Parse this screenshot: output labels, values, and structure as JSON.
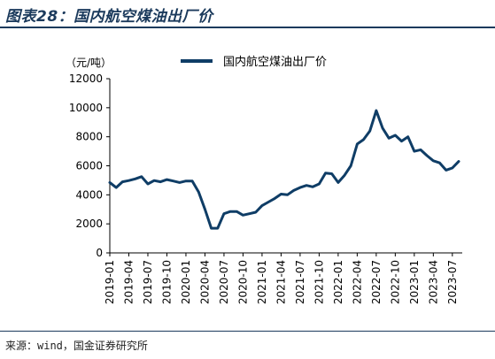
{
  "figure": {
    "title": "图表28：国内航空煤油出厂价",
    "unit": "（元/吨）",
    "source": "来源：wind，国金证券研究所"
  },
  "chart_data": {
    "type": "line",
    "title": "",
    "ylabel": "（元/吨）",
    "ylim": [
      0,
      12000
    ],
    "yticks": [
      0,
      2000,
      4000,
      6000,
      8000,
      10000,
      12000
    ],
    "xticks": [
      "2019-01",
      "2019-04",
      "2019-07",
      "2019-10",
      "2020-01",
      "2020-04",
      "2020-07",
      "2020-10",
      "2021-01",
      "2021-04",
      "2021-07",
      "2021-10",
      "2022-01",
      "2022-04",
      "2022-07",
      "2022-10",
      "2023-01",
      "2023-04",
      "2023-07"
    ],
    "legend": "top-center",
    "grid": false,
    "x": [
      "2019-01",
      "2019-02",
      "2019-03",
      "2019-04",
      "2019-05",
      "2019-06",
      "2019-07",
      "2019-08",
      "2019-09",
      "2019-10",
      "2019-11",
      "2019-12",
      "2020-01",
      "2020-02",
      "2020-03",
      "2020-04",
      "2020-05",
      "2020-06",
      "2020-07",
      "2020-08",
      "2020-09",
      "2020-10",
      "2020-11",
      "2020-12",
      "2021-01",
      "2021-02",
      "2021-03",
      "2021-04",
      "2021-05",
      "2021-06",
      "2021-07",
      "2021-08",
      "2021-09",
      "2021-10",
      "2021-11",
      "2021-12",
      "2022-01",
      "2022-02",
      "2022-03",
      "2022-04",
      "2022-05",
      "2022-06",
      "2022-07",
      "2022-08",
      "2022-09",
      "2022-10",
      "2022-11",
      "2022-12",
      "2023-01",
      "2023-02",
      "2023-03",
      "2023-04",
      "2023-05",
      "2023-06",
      "2023-07",
      "2023-08"
    ],
    "series": [
      {
        "name": "国内航空煤油出厂价",
        "color": "#0f3d66",
        "values": [
          4850,
          4500,
          4900,
          4980,
          5100,
          5250,
          4750,
          4980,
          4900,
          5050,
          4950,
          4850,
          4950,
          4950,
          4200,
          3000,
          1700,
          1700,
          2700,
          2850,
          2850,
          2600,
          2700,
          2800,
          3250,
          3500,
          3750,
          4050,
          4000,
          4300,
          4500,
          4650,
          4550,
          4750,
          5500,
          5450,
          4850,
          5350,
          6000,
          7500,
          7800,
          8400,
          9800,
          8600,
          7900,
          8100,
          7700,
          8000,
          7000,
          7100,
          6700,
          6350,
          6200,
          5700,
          5850,
          6300
        ]
      }
    ]
  },
  "colors": {
    "line": "#0f3d66",
    "title": "#1b3a5c"
  }
}
